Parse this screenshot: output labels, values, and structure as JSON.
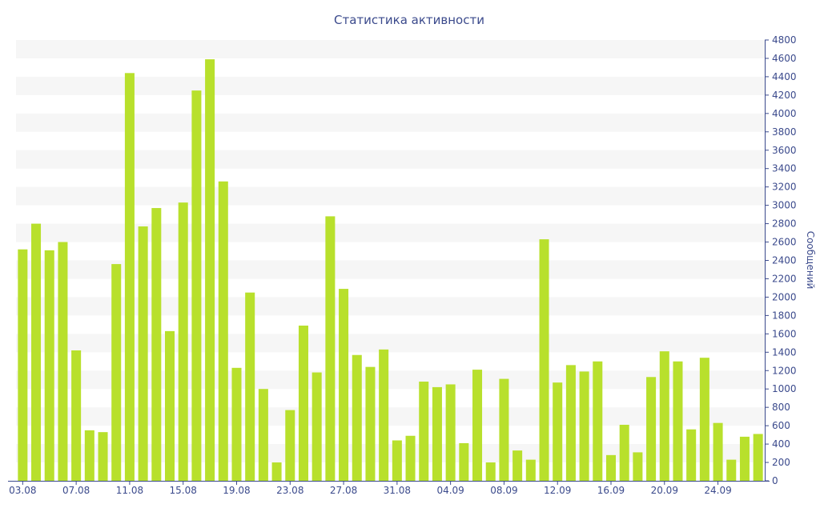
{
  "chart_data": {
    "type": "bar",
    "title": "Статистика активности",
    "xlabel": "",
    "ylabel": "Сообщений",
    "ylim": [
      0,
      4800
    ],
    "ytick_step": 200,
    "grid": "horizontal bands",
    "categories": [
      "03.08",
      "04.08",
      "05.08",
      "06.08",
      "07.08",
      "08.08",
      "09.08",
      "10.08",
      "11.08",
      "12.08",
      "13.08",
      "14.08",
      "15.08",
      "16.08",
      "17.08",
      "18.08",
      "19.08",
      "20.08",
      "21.08",
      "22.08",
      "23.08",
      "24.08",
      "25.08",
      "26.08",
      "27.08",
      "28.08",
      "29.08",
      "30.08",
      "31.08",
      "01.09",
      "02.09",
      "03.09",
      "04.09",
      "05.09",
      "06.09",
      "07.09",
      "08.09",
      "09.09",
      "10.09",
      "11.09",
      "12.09",
      "13.09",
      "14.09",
      "15.09",
      "16.09",
      "17.09",
      "18.09",
      "19.09",
      "20.09",
      "21.09",
      "22.09",
      "23.09",
      "24.09",
      "25.09",
      "26.09",
      "27.09"
    ],
    "values": [
      2520,
      2800,
      2510,
      2600,
      1420,
      550,
      530,
      2360,
      4440,
      2770,
      2970,
      1630,
      3030,
      4250,
      4590,
      3260,
      1230,
      2050,
      1000,
      200,
      770,
      1690,
      1180,
      2880,
      2090,
      1370,
      1240,
      1430,
      440,
      490,
      1080,
      1020,
      1050,
      410,
      1210,
      200,
      1110,
      330,
      230,
      2630,
      1070,
      1260,
      1190,
      1300,
      280,
      610,
      310,
      1130,
      1410,
      1300,
      560,
      1340,
      630,
      230,
      480,
      510
    ],
    "x_tick_labels": [
      "03.08",
      "07.08",
      "11.08",
      "15.08",
      "19.08",
      "23.08",
      "27.08",
      "31.08",
      "04.09",
      "08.09",
      "12.09",
      "16.09",
      "20.09",
      "24.09"
    ],
    "y_tick_labels": [
      "0",
      "200",
      "400",
      "600",
      "800",
      "1000",
      "1200",
      "1400",
      "1600",
      "1800",
      "2000",
      "2200",
      "2400",
      "2600",
      "2800",
      "3000",
      "3200",
      "3400",
      "3600",
      "3800",
      "4000",
      "4200",
      "4400",
      "4600",
      "4800"
    ],
    "colors": {
      "bar": "#b8e02c",
      "band": "#f6f6f6",
      "axis": "#3b4a8c",
      "text": "#3b4a8c"
    }
  }
}
